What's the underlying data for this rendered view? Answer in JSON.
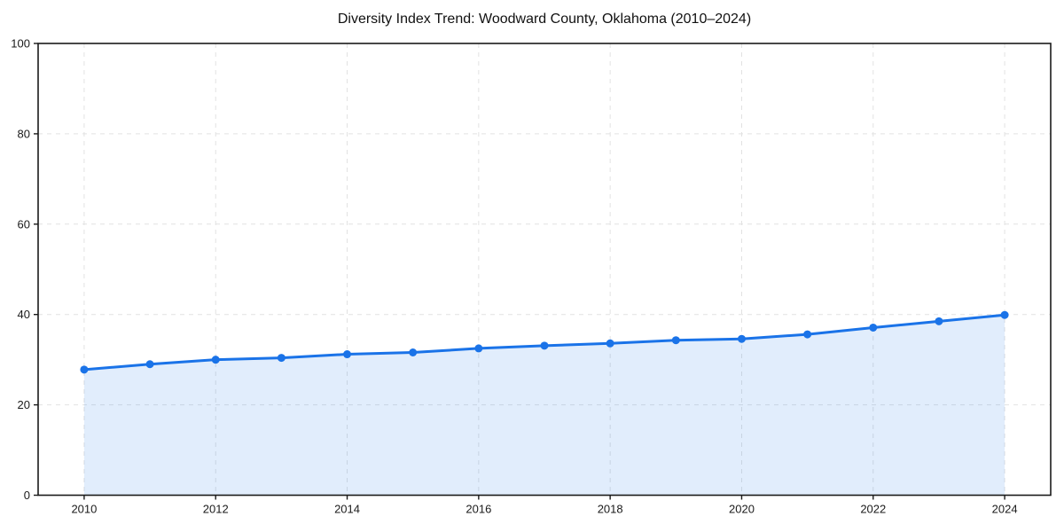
{
  "title": "Diversity Index Trend: Woodward County, Oklahoma (2010–2024)",
  "chart_data": {
    "type": "line",
    "title": "Diversity Index Trend: Woodward County, Oklahoma (2010–2024)",
    "x": [
      2010,
      2011,
      2012,
      2013,
      2014,
      2015,
      2016,
      2017,
      2018,
      2019,
      2020,
      2021,
      2022,
      2023,
      2024
    ],
    "series": [
      {
        "name": "Diversity Index",
        "values": [
          27.8,
          29.0,
          30.0,
          30.4,
          31.2,
          31.6,
          32.5,
          33.1,
          33.6,
          34.3,
          34.6,
          35.6,
          37.1,
          38.5,
          39.9
        ]
      }
    ],
    "xlabel": "",
    "ylabel": "",
    "xlim": [
      2009.3,
      2024.7
    ],
    "ylim": [
      0,
      100
    ],
    "x_ticks": [
      2010,
      2012,
      2014,
      2016,
      2018,
      2020,
      2022,
      2024
    ],
    "y_ticks": [
      0,
      20,
      40,
      60,
      80,
      100
    ],
    "grid": true,
    "grid_style": "dashed",
    "legend": false,
    "marker": "circle",
    "colors": {
      "line": "#1a73e8",
      "marker": "#1a73e8",
      "fill": "#1a73e8",
      "fill_opacity": 0.13,
      "grid": "#e2e2e2",
      "spine": "#1a1a1a",
      "tick_label": "#1a1a1a",
      "title": "#111111",
      "background": "#ffffff"
    }
  }
}
